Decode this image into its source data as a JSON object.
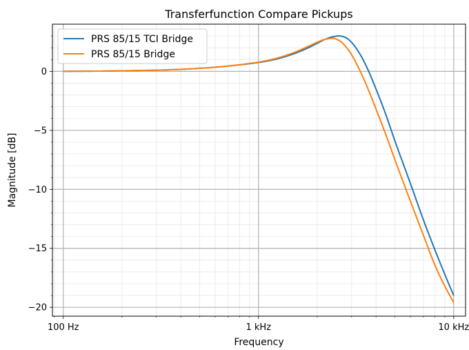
{
  "chart_data": {
    "type": "line",
    "title": "Transferfunction Compare Pickups",
    "xlabel": "Frequency",
    "ylabel": "Magnitude [dB]",
    "xscale": "log",
    "xlim": [
      88,
      11500
    ],
    "ylim": [
      -20.75,
      4.0
    ],
    "grid": true,
    "legend_position": "top-left",
    "x_ticks": [
      {
        "value": 100,
        "label": "100 Hz"
      },
      {
        "value": 1000,
        "label": "1 kHz"
      },
      {
        "value": 10000,
        "label": "10 kHz"
      }
    ],
    "y_ticks": [
      {
        "value": 0,
        "label": "0"
      },
      {
        "value": -5,
        "label": "−5"
      },
      {
        "value": -10,
        "label": "−10"
      },
      {
        "value": -15,
        "label": "−15"
      },
      {
        "value": -20,
        "label": "−20"
      }
    ],
    "series": [
      {
        "name": "PRS 85/15 TCI Bridge",
        "color": "#1f77b4",
        "x": [
          100,
          150,
          200,
          300,
          400,
          500,
          600,
          700,
          800,
          900,
          1000,
          1200,
          1500,
          1800,
          2000,
          2200,
          2400,
          2600,
          2800,
          3000,
          3300,
          3600,
          4000,
          4500,
          5000,
          6000,
          7000,
          8000,
          9000,
          10000
        ],
        "y": [
          0,
          0.02,
          0.05,
          0.1,
          0.17,
          0.26,
          0.35,
          0.45,
          0.55,
          0.65,
          0.75,
          0.99,
          1.46,
          2.0,
          2.38,
          2.72,
          2.93,
          3.0,
          2.86,
          2.45,
          1.5,
          0.3,
          -1.5,
          -3.7,
          -5.9,
          -9.5,
          -12.6,
          -15.1,
          -17.2,
          -19.0
        ]
      },
      {
        "name": "PRS 85/15 Bridge",
        "color": "#ff7f0e",
        "x": [
          100,
          150,
          200,
          300,
          400,
          500,
          600,
          700,
          800,
          900,
          1000,
          1200,
          1500,
          1800,
          2000,
          2200,
          2400,
          2600,
          2800,
          3000,
          3300,
          3600,
          4000,
          4500,
          5000,
          6000,
          7000,
          8000,
          9000,
          10000
        ],
        "y": [
          0,
          0.02,
          0.05,
          0.1,
          0.17,
          0.26,
          0.35,
          0.45,
          0.56,
          0.67,
          0.78,
          1.05,
          1.56,
          2.12,
          2.47,
          2.72,
          2.8,
          2.6,
          2.1,
          1.4,
          0.1,
          -1.3,
          -3.2,
          -5.4,
          -7.5,
          -11.0,
          -13.9,
          -16.4,
          -18.2,
          -19.6
        ]
      }
    ]
  }
}
